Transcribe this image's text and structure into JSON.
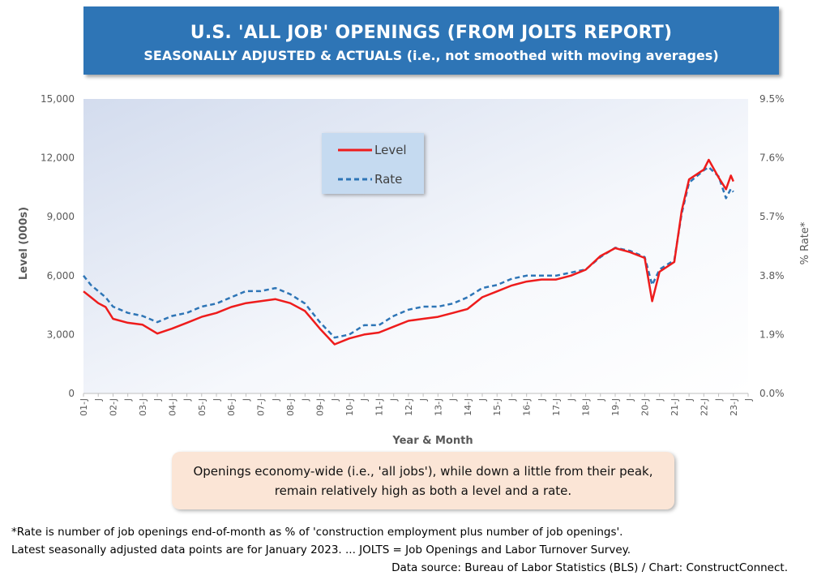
{
  "header": {
    "title": "U.S. 'ALL JOB' OPENINGS (FROM JOLTS REPORT)",
    "subtitle": "SEASONALLY ADJUSTED & ACTUALS (i.e., not smoothed with moving averages)"
  },
  "note": {
    "line1": "Openings economy-wide (i.e., 'all jobs'), while down a little from their peak,",
    "line2": "remain relatively high as both a level and a rate."
  },
  "footer": {
    "line1": "*Rate is number of job openings end-of-month as % of 'construction employment plus number of job openings'.",
    "line2": "Latest seasonally adjusted data points are for January 2023. ... JOLTS = Job Openings and Labor Turnover Survey.",
    "line3": "Data source: Bureau of Labor Statistics (BLS) / Chart: ConstructConnect."
  },
  "colors": {
    "level": "#ee1c1c",
    "rate": "#2e75b6",
    "header_bg": "#2e75b6",
    "note_bg": "#fbe5d6",
    "legend_bg": "#c5daf0"
  },
  "chart_data": {
    "type": "line",
    "xlabel": "Year & Month",
    "ylabel": "Level (000s)",
    "y2label": "% Rate*",
    "ylim": [
      0,
      15000
    ],
    "y2lim": [
      0,
      9.5
    ],
    "yticks": [
      "15,000",
      "12,000",
      "9,000",
      "6,000",
      "3,000",
      "0"
    ],
    "y2ticks": [
      "9.5%",
      "7.6%",
      "5.7%",
      "3.8%",
      "1.9%",
      "0.0%"
    ],
    "xticks": [
      "01-J",
      "J",
      "02-J",
      "J",
      "03-J",
      "J",
      "04-J",
      "J",
      "05-J",
      "J",
      "06-J",
      "J",
      "07-J",
      "J",
      "08-J",
      "J",
      "09-J",
      "J",
      "10-J",
      "J",
      "11-J",
      "J",
      "12-J",
      "J",
      "13-J",
      "J",
      "14-J",
      "J",
      "15-J",
      "J",
      "16-J",
      "J",
      "17-J",
      "J",
      "18-J",
      "J",
      "19-J",
      "J",
      "20-J",
      "J",
      "21-J",
      "J",
      "22-J",
      "J",
      "23-J",
      "J"
    ],
    "legend_position": "top-center",
    "x_start": "2001-01",
    "series": [
      {
        "name": "Level",
        "style": "solid",
        "axis": "left",
        "points": [
          [
            "2001-01",
            5200
          ],
          [
            "2001-04",
            4900
          ],
          [
            "2001-07",
            4600
          ],
          [
            "2001-10",
            4400
          ],
          [
            "2002-01",
            3800
          ],
          [
            "2002-07",
            3600
          ],
          [
            "2003-01",
            3500
          ],
          [
            "2003-07",
            3050
          ],
          [
            "2004-01",
            3300
          ],
          [
            "2004-07",
            3600
          ],
          [
            "2005-01",
            3900
          ],
          [
            "2005-07",
            4100
          ],
          [
            "2006-01",
            4400
          ],
          [
            "2006-07",
            4600
          ],
          [
            "2007-01",
            4700
          ],
          [
            "2007-07",
            4800
          ],
          [
            "2008-01",
            4600
          ],
          [
            "2008-07",
            4200
          ],
          [
            "2009-01",
            3300
          ],
          [
            "2009-07",
            2500
          ],
          [
            "2010-01",
            2800
          ],
          [
            "2010-07",
            3000
          ],
          [
            "2011-01",
            3100
          ],
          [
            "2011-07",
            3400
          ],
          [
            "2012-01",
            3700
          ],
          [
            "2012-07",
            3800
          ],
          [
            "2013-01",
            3900
          ],
          [
            "2013-07",
            4100
          ],
          [
            "2014-01",
            4300
          ],
          [
            "2014-07",
            4900
          ],
          [
            "2015-01",
            5200
          ],
          [
            "2015-07",
            5500
          ],
          [
            "2016-01",
            5700
          ],
          [
            "2016-07",
            5800
          ],
          [
            "2017-01",
            5800
          ],
          [
            "2017-07",
            6000
          ],
          [
            "2018-01",
            6300
          ],
          [
            "2018-07",
            7000
          ],
          [
            "2019-01",
            7400
          ],
          [
            "2019-07",
            7200
          ],
          [
            "2020-01",
            6900
          ],
          [
            "2020-04",
            4700
          ],
          [
            "2020-07",
            6200
          ],
          [
            "2021-01",
            6700
          ],
          [
            "2021-04",
            9300
          ],
          [
            "2021-07",
            10900
          ],
          [
            "2022-01",
            11400
          ],
          [
            "2022-03",
            11900
          ],
          [
            "2022-07",
            11000
          ],
          [
            "2022-10",
            10400
          ],
          [
            "2022-12",
            11100
          ],
          [
            "2023-01",
            10800
          ]
        ]
      },
      {
        "name": "Rate",
        "style": "dashed",
        "axis": "right",
        "points": [
          [
            "2001-01",
            3.8
          ],
          [
            "2001-04",
            3.5
          ],
          [
            "2001-07",
            3.3
          ],
          [
            "2001-10",
            3.1
          ],
          [
            "2002-01",
            2.8
          ],
          [
            "2002-07",
            2.6
          ],
          [
            "2003-01",
            2.5
          ],
          [
            "2003-07",
            2.3
          ],
          [
            "2004-01",
            2.5
          ],
          [
            "2004-07",
            2.6
          ],
          [
            "2005-01",
            2.8
          ],
          [
            "2005-07",
            2.9
          ],
          [
            "2006-01",
            3.1
          ],
          [
            "2006-07",
            3.3
          ],
          [
            "2007-01",
            3.3
          ],
          [
            "2007-07",
            3.4
          ],
          [
            "2008-01",
            3.2
          ],
          [
            "2008-07",
            2.9
          ],
          [
            "2009-01",
            2.3
          ],
          [
            "2009-07",
            1.8
          ],
          [
            "2010-01",
            1.9
          ],
          [
            "2010-07",
            2.2
          ],
          [
            "2011-01",
            2.2
          ],
          [
            "2011-07",
            2.5
          ],
          [
            "2012-01",
            2.7
          ],
          [
            "2012-07",
            2.8
          ],
          [
            "2013-01",
            2.8
          ],
          [
            "2013-07",
            2.9
          ],
          [
            "2014-01",
            3.1
          ],
          [
            "2014-07",
            3.4
          ],
          [
            "2015-01",
            3.5
          ],
          [
            "2015-07",
            3.7
          ],
          [
            "2016-01",
            3.8
          ],
          [
            "2016-07",
            3.8
          ],
          [
            "2017-01",
            3.8
          ],
          [
            "2017-07",
            3.9
          ],
          [
            "2018-01",
            4.0
          ],
          [
            "2018-07",
            4.4
          ],
          [
            "2019-01",
            4.7
          ],
          [
            "2019-07",
            4.6
          ],
          [
            "2020-01",
            4.4
          ],
          [
            "2020-04",
            3.5
          ],
          [
            "2020-07",
            4.0
          ],
          [
            "2021-01",
            4.3
          ],
          [
            "2021-04",
            5.8
          ],
          [
            "2021-07",
            6.8
          ],
          [
            "2022-01",
            7.2
          ],
          [
            "2022-03",
            7.3
          ],
          [
            "2022-07",
            7.0
          ],
          [
            "2022-10",
            6.3
          ],
          [
            "2022-12",
            6.6
          ],
          [
            "2023-01",
            6.5
          ]
        ]
      }
    ]
  }
}
